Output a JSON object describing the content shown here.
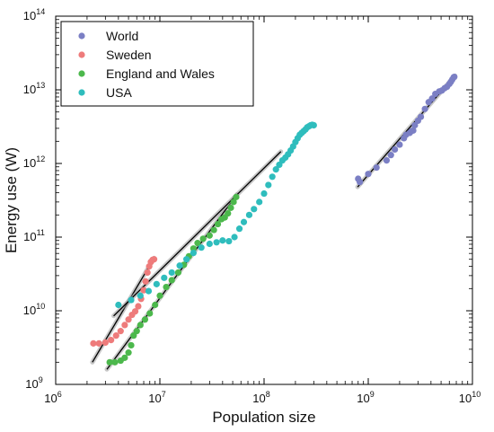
{
  "chart_data": {
    "type": "scatter",
    "title": "",
    "xlabel": "Population size",
    "ylabel": "Energy use (W)",
    "xscale": "log",
    "yscale": "log",
    "xlim": [
      1000000,
      10000000000
    ],
    "ylim": [
      1000000000,
      100000000000000
    ],
    "x_ticks": [
      {
        "base": "10",
        "exp": "6",
        "value": 1000000
      },
      {
        "base": "10",
        "exp": "7",
        "value": 10000000
      },
      {
        "base": "10",
        "exp": "8",
        "value": 100000000
      },
      {
        "base": "10",
        "exp": "9",
        "value": 1000000000
      },
      {
        "base": "10",
        "exp": "10",
        "value": 10000000000
      }
    ],
    "y_ticks": [
      {
        "base": "10",
        "exp": "9",
        "value": 1000000000
      },
      {
        "base": "10",
        "exp": "10",
        "value": 10000000000
      },
      {
        "base": "10",
        "exp": "11",
        "value": 100000000000
      },
      {
        "base": "10",
        "exp": "12",
        "value": 1000000000000
      },
      {
        "base": "10",
        "exp": "13",
        "value": 10000000000000
      },
      {
        "base": "10",
        "exp": "14",
        "value": 100000000000000
      }
    ],
    "grid": false,
    "legend_position": "top-left",
    "series": [
      {
        "name": "World",
        "color": "#7b7fc4",
        "points": [
          [
            800000000.0,
            620000000000.0
          ],
          [
            830000000.0,
            560000000000.0
          ],
          [
            1000000000.0,
            720000000000.0
          ],
          [
            1200000000.0,
            880000000000.0
          ],
          [
            1500000000.0,
            1100000000000.0
          ],
          [
            1650000000.0,
            1300000000000.0
          ],
          [
            1800000000.0,
            1550000000000.0
          ],
          [
            2000000000.0,
            1800000000000.0
          ],
          [
            2200000000.0,
            2200000000000.0
          ],
          [
            2300000000.0,
            2450000000000.0
          ],
          [
            2500000000.0,
            2600000000000.0
          ],
          [
            2600000000.0,
            2750000000000.0
          ],
          [
            2700000000.0,
            2800000000000.0
          ],
          [
            2800000000.0,
            3300000000000.0
          ],
          [
            3000000000.0,
            3800000000000.0
          ],
          [
            3200000000.0,
            4300000000000.0
          ],
          [
            3500000000.0,
            5500000000000.0
          ],
          [
            3800000000.0,
            6800000000000.0
          ],
          [
            4100000000.0,
            7600000000000.0
          ],
          [
            4400000000.0,
            8800000000000.0
          ],
          [
            4800000000.0,
            9500000000000.0
          ],
          [
            5100000000.0,
            9800000000000.0
          ],
          [
            5400000000.0,
            10500000000000.0
          ],
          [
            5700000000.0,
            11000000000000.0
          ],
          [
            6000000000.0,
            12000000000000.0
          ],
          [
            6200000000.0,
            12800000000000.0
          ],
          [
            6400000000.0,
            13800000000000.0
          ],
          [
            6600000000.0,
            14800000000000.0
          ],
          [
            6700000000.0,
            15000000000000.0
          ]
        ],
        "fit": [
          [
            790000000.0,
            480000000000.0
          ],
          [
            6800000000.0,
            15500000000000.0
          ]
        ]
      },
      {
        "name": "Sweden",
        "color": "#ee7b7b",
        "points": [
          [
            2300000.0,
            3600000000.0
          ],
          [
            2600000.0,
            3600000000.0
          ],
          [
            3000000.0,
            3700000000.0
          ],
          [
            3400000.0,
            4000000000.0
          ],
          [
            3800000.0,
            4600000000.0
          ],
          [
            4200000.0,
            5300000000.0
          ],
          [
            4600000.0,
            6400000000.0
          ],
          [
            5000000.0,
            7600000000.0
          ],
          [
            5400000.0,
            8800000000.0
          ],
          [
            5800000.0,
            9800000000.0
          ],
          [
            6200000.0,
            11500000000.0
          ],
          [
            6600000.0,
            14500000000.0
          ],
          [
            7000000.0,
            19000000000.0
          ],
          [
            7300000.0,
            25000000000.0
          ],
          [
            7600000.0,
            33000000000.0
          ],
          [
            7900000.0,
            40000000000.0
          ],
          [
            8200000.0,
            46000000000.0
          ],
          [
            8500000.0,
            49000000000.0
          ],
          [
            8800000.0,
            50000000000.0
          ]
        ],
        "fit": [
          [
            2250000.0,
            2000000000.0
          ],
          [
            8800000.0,
            52000000000.0
          ]
        ]
      },
      {
        "name": "England and Wales",
        "color": "#4cb84c",
        "points": [
          [
            3300000.0,
            2000000000.0
          ],
          [
            3700000.0,
            2000000000.0
          ],
          [
            4200000.0,
            2100000000.0
          ],
          [
            4600000.0,
            2300000000.0
          ],
          [
            5000000.0,
            2700000000.0
          ],
          [
            5300000.0,
            3400000000.0
          ],
          [
            5600000.0,
            4600000000.0
          ],
          [
            6000000.0,
            5300000000.0
          ],
          [
            6500000.0,
            6400000000.0
          ],
          [
            7200000.0,
            7600000000.0
          ],
          [
            8000000.0,
            9200000000.0
          ],
          [
            9000000.0,
            12000000000.0
          ],
          [
            10000000.0,
            16000000000.0
          ],
          [
            11500000.0,
            21000000000.0
          ],
          [
            13000000.0,
            26000000000.0
          ],
          [
            15000000.0,
            33000000000.0
          ],
          [
            17000000.0,
            42000000000.0
          ],
          [
            19000000.0,
            55000000000.0
          ],
          [
            21000000.0,
            70000000000.0
          ],
          [
            23000000.0,
            83000000000.0
          ],
          [
            26000000.0,
            95000000000.0
          ],
          [
            30000000.0,
            105000000000.0
          ],
          [
            33000000.0,
            125000000000.0
          ],
          [
            36000000.0,
            150000000000.0
          ],
          [
            39000000.0,
            175000000000.0
          ],
          [
            42000000.0,
            185000000000.0
          ],
          [
            45000000.0,
            210000000000.0
          ],
          [
            48000000.0,
            250000000000.0
          ],
          [
            51000000.0,
            300000000000.0
          ],
          [
            54000000.0,
            350000000000.0
          ]
        ],
        "fit": [
          [
            3100000.0,
            1600000000.0
          ],
          [
            55000000.0,
            380000000000.0
          ]
        ]
      },
      {
        "name": "USA",
        "color": "#2fbdbd",
        "points": [
          [
            4000000.0,
            12000000000.0
          ],
          [
            5300000.0,
            14000000000.0
          ],
          [
            6500000.0,
            16000000000.0
          ],
          [
            7800000.0,
            18500000000.0
          ],
          [
            9300000.0,
            23000000000.0
          ],
          [
            11000000.0,
            28000000000.0
          ],
          [
            13000000.0,
            33000000000.0
          ],
          [
            15500000.0,
            41000000000.0
          ],
          [
            18000000.0,
            50000000000.0
          ],
          [
            21000000.0,
            61000000000.0
          ],
          [
            25000000.0,
            72000000000.0
          ],
          [
            30000000.0,
            81000000000.0
          ],
          [
            35000000.0,
            85000000000.0
          ],
          [
            40000000.0,
            90000000000.0
          ],
          [
            46000000.0,
            88000000000.0
          ],
          [
            52000000.0,
            100000000000.0
          ],
          [
            58000000.0,
            130000000000.0
          ],
          [
            64000000.0,
            160000000000.0
          ],
          [
            72000000.0,
            200000000000.0
          ],
          [
            80000000.0,
            240000000000.0
          ],
          [
            90000000.0,
            300000000000.0
          ],
          [
            100000000.0,
            390000000000.0
          ],
          [
            110000000.0,
            510000000000.0
          ],
          [
            120000000.0,
            660000000000.0
          ],
          [
            130000000.0,
            830000000000.0
          ],
          [
            140000000.0,
            960000000000.0
          ],
          [
            150000000.0,
            1100000000000.0
          ],
          [
            160000000.0,
            1200000000000.0
          ],
          [
            170000000.0,
            1330000000000.0
          ],
          [
            180000000.0,
            1500000000000.0
          ],
          [
            190000000.0,
            1700000000000.0
          ],
          [
            200000000.0,
            1950000000000.0
          ],
          [
            210000000.0,
            2200000000000.0
          ],
          [
            220000000.0,
            2450000000000.0
          ],
          [
            230000000.0,
            2600000000000.0
          ],
          [
            240000000.0,
            2750000000000.0
          ],
          [
            250000000.0,
            2900000000000.0
          ],
          [
            260000000.0,
            3100000000000.0
          ],
          [
            270000000.0,
            3200000000000.0
          ],
          [
            280000000.0,
            3300000000000.0
          ],
          [
            290000000.0,
            3350000000000.0
          ],
          [
            300000000.0,
            3300000000000.0
          ]
        ],
        "fit": [
          [
            3600000.0,
            8500000000.0
          ],
          [
            145000000.0,
            1450000000000.0
          ]
        ]
      }
    ]
  }
}
